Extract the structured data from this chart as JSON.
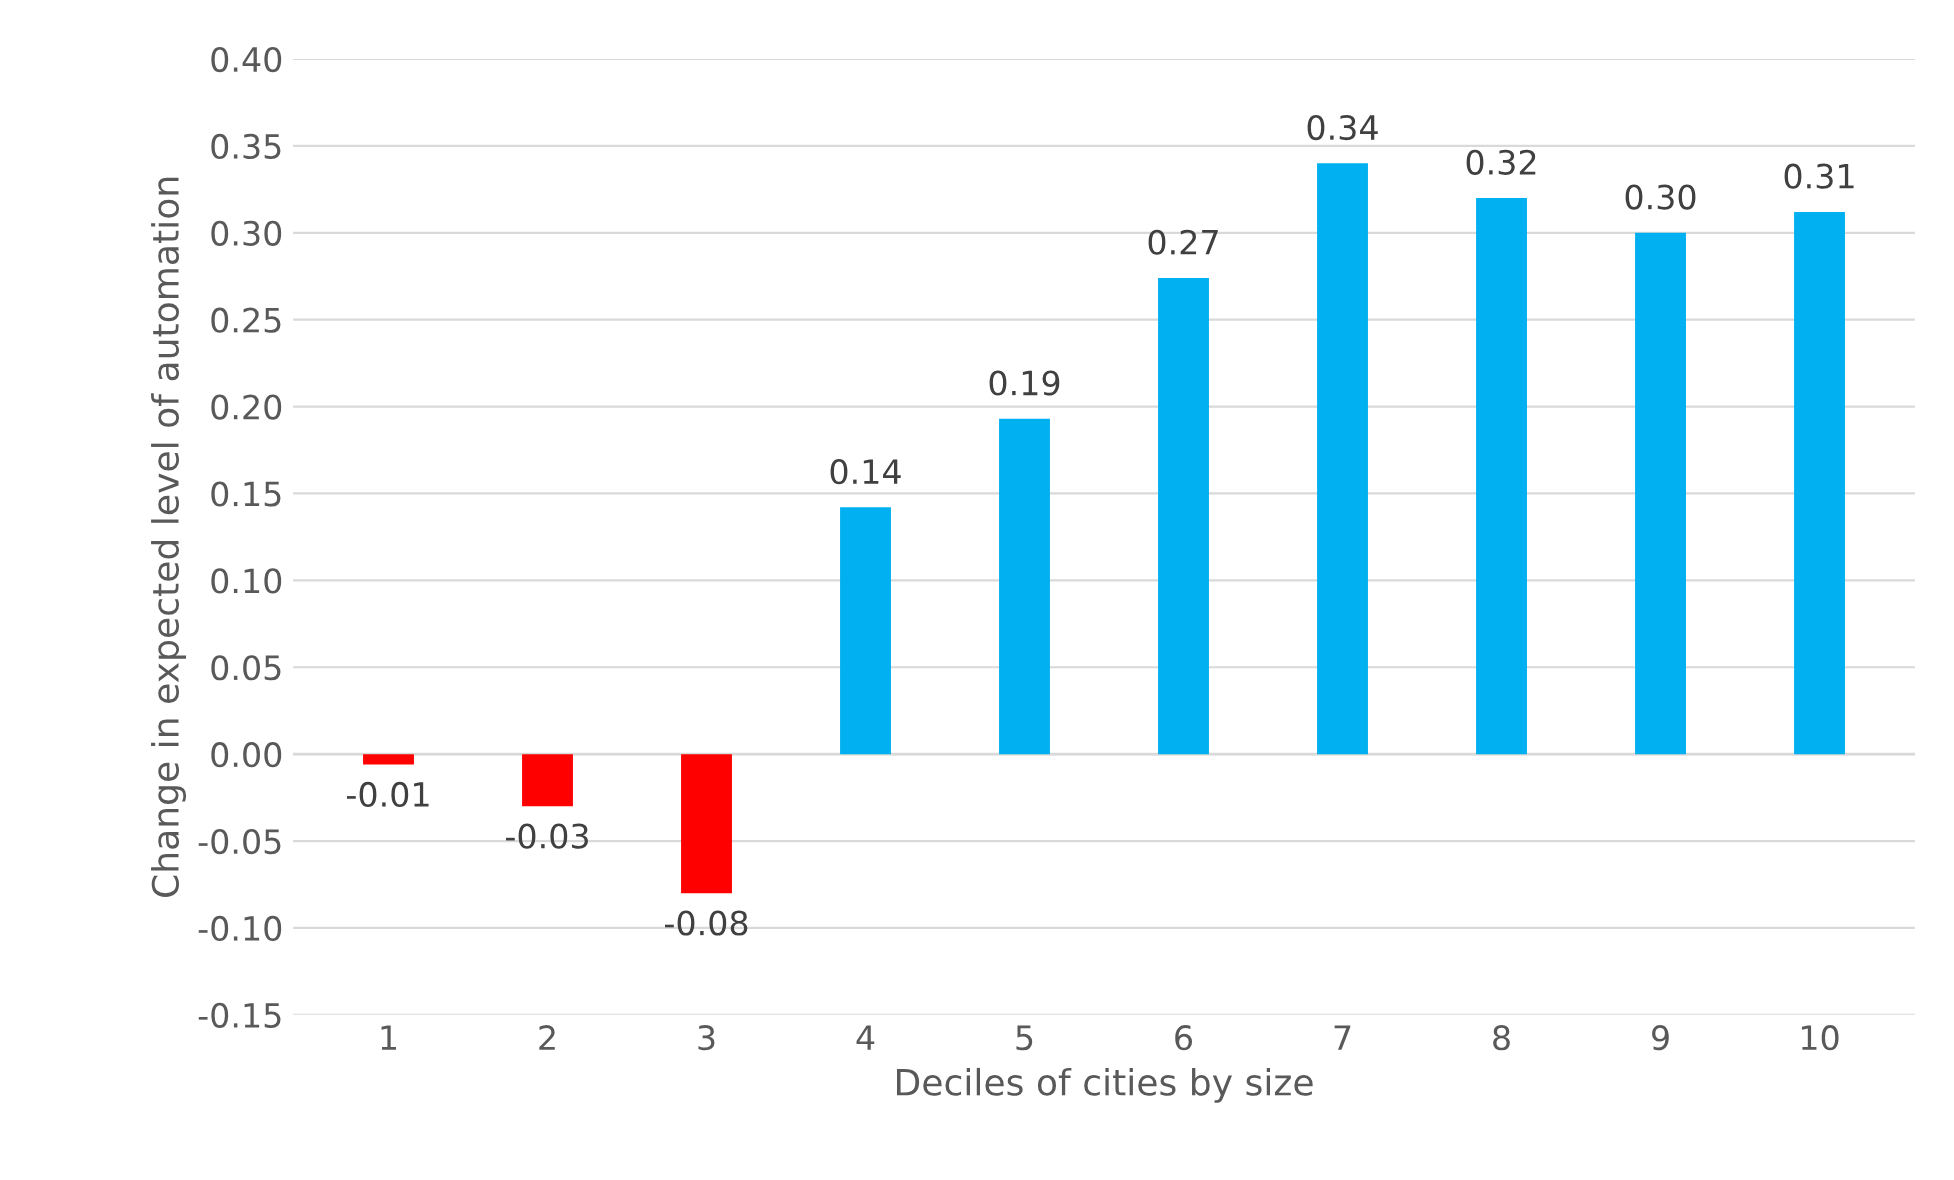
{
  "chart_data": {
    "type": "bar",
    "xlabel": "Deciles of cities by size",
    "ylabel": "Change in expected level of automation",
    "categories": [
      "1",
      "2",
      "3",
      "4",
      "5",
      "6",
      "7",
      "8",
      "9",
      "10"
    ],
    "values": [
      -0.006,
      -0.03,
      -0.08,
      0.142,
      0.193,
      0.274,
      0.34,
      0.32,
      0.3,
      0.312
    ],
    "value_labels": [
      "-0.01",
      "-0.03",
      "-0.08",
      "0.14",
      "0.19",
      "0.27",
      "0.34",
      "0.32",
      "0.30",
      "0.31"
    ],
    "colors": [
      "#ff0000",
      "#ff0000",
      "#ff0000",
      "#00b0f0",
      "#00b0f0",
      "#00b0f0",
      "#00b0f0",
      "#00b0f0",
      "#00b0f0",
      "#00b0f0"
    ],
    "ylim": [
      -0.15,
      0.4
    ],
    "yticks": [
      {
        "value": -0.15,
        "label": "-0.15"
      },
      {
        "value": -0.1,
        "label": "-0.10"
      },
      {
        "value": -0.05,
        "label": "-0.05"
      },
      {
        "value": 0,
        "label": "0.00"
      },
      {
        "value": 0.05,
        "label": "0.05"
      },
      {
        "value": 0.1,
        "label": "0.10"
      },
      {
        "value": 0.15,
        "label": "0.15"
      },
      {
        "value": 0.2,
        "label": "0.20"
      },
      {
        "value": 0.25,
        "label": "0.25"
      },
      {
        "value": 0.3,
        "label": "0.30"
      },
      {
        "value": 0.35,
        "label": "0.35"
      },
      {
        "value": 0.4,
        "label": "0.40"
      }
    ],
    "grid": "y"
  }
}
